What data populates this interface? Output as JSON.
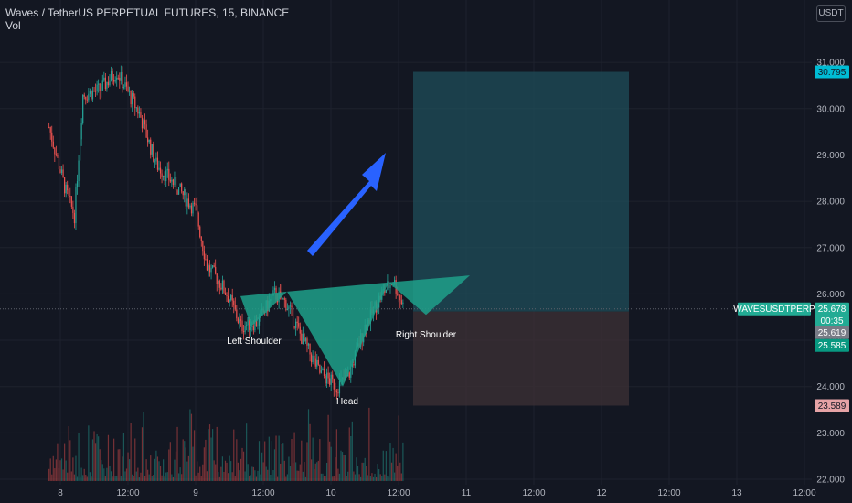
{
  "header": {
    "symbol_line": "Waves / TetherUS PERPETUAL FUTURES, 15, BINANCE",
    "volume_label": "Vol"
  },
  "price_axis": {
    "unit_button": "USDT"
  },
  "colors": {
    "background": "#131722",
    "bull": "#26a69a",
    "bear": "#ef5350",
    "pattern_fill": "#1fa089",
    "arrow": "#2962ff",
    "profit_zone": "#1f4e5a",
    "loss_zone": "#3b2f35"
  },
  "annotations": {
    "left_shoulder": "Left Shoulder",
    "head": "Head",
    "right_shoulder": "Right Shoulder"
  },
  "price_tags": {
    "target": "30.795",
    "symbol_name": "WAVESUSDTPERP",
    "last_price": "25.678",
    "countdown": "00:35",
    "entry_price": "25.619",
    "entry_low": "25.585",
    "stop": "23.589"
  },
  "chart_data": {
    "type": "candlestick",
    "y_axis_ticks": [
      "31.000",
      "30.000",
      "29.000",
      "28.000",
      "27.000",
      "26.000",
      "25.000",
      "24.000",
      "23.000",
      "22.000"
    ],
    "ylim": [
      22.0,
      31.9
    ],
    "x_axis_ticks": [
      "8",
      "12:00",
      "9",
      "12:00",
      "10",
      "12:00",
      "11",
      "12:00",
      "12",
      "12:00",
      "13",
      "12:00"
    ],
    "approx_close_path": [
      {
        "t": "7 22:00",
        "price": 29.6
      },
      {
        "t": "8 01:00",
        "price": 28.2
      },
      {
        "t": "8 02:30",
        "price": 27.7
      },
      {
        "t": "8 04:00",
        "price": 30.3
      },
      {
        "t": "8 07:00",
        "price": 30.4
      },
      {
        "t": "8 10:00",
        "price": 30.8
      },
      {
        "t": "8 14:00",
        "price": 29.9
      },
      {
        "t": "8 17:00",
        "price": 28.8
      },
      {
        "t": "8 20:00",
        "price": 28.4
      },
      {
        "t": "9 00:00",
        "price": 27.8
      },
      {
        "t": "9 02:00",
        "price": 26.6
      },
      {
        "t": "9 04:00",
        "price": 26.3
      },
      {
        "t": "9 06:00",
        "price": 25.9
      },
      {
        "t": "9 08:00",
        "price": 25.3
      },
      {
        "t": "9 11:00",
        "price": 25.4
      },
      {
        "t": "9 14:00",
        "price": 26.0
      },
      {
        "t": "9 16:00",
        "price": 25.8
      },
      {
        "t": "9 19:00",
        "price": 25.0
      },
      {
        "t": "9 22:00",
        "price": 24.3
      },
      {
        "t": "10 01:00",
        "price": 24.0
      },
      {
        "t": "10 03:00",
        "price": 24.2
      },
      {
        "t": "10 06:00",
        "price": 25.3
      },
      {
        "t": "10 09:00",
        "price": 26.0
      },
      {
        "t": "10 11:00",
        "price": 26.3
      },
      {
        "t": "10 13:00",
        "price": 25.68
      }
    ],
    "pattern": {
      "name": "Inverse head and shoulders",
      "neckline": [
        25.9,
        26.4
      ],
      "left_shoulder_low": 25.3,
      "head_low": 24.0,
      "right_shoulder_low": 25.5
    },
    "position": {
      "entry": 25.619,
      "target": 30.795,
      "stop": 23.589
    },
    "volume": {
      "series_name": "Vol"
    }
  }
}
